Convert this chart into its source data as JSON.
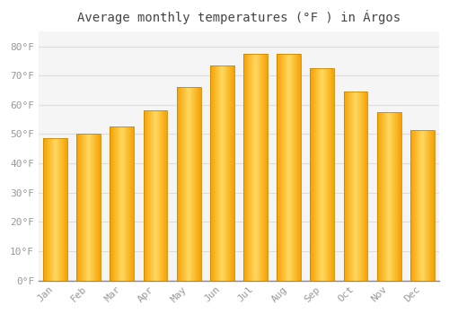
{
  "title": "Average monthly temperatures (°F ) in Árgos",
  "months": [
    "Jan",
    "Feb",
    "Mar",
    "Apr",
    "May",
    "Jun",
    "Jul",
    "Aug",
    "Sep",
    "Oct",
    "Nov",
    "Dec"
  ],
  "values": [
    48.5,
    50.0,
    52.5,
    58.0,
    66.0,
    73.5,
    77.5,
    77.5,
    72.5,
    64.5,
    57.5,
    51.5
  ],
  "bar_color_main": "#FFA500",
  "bar_color_light": "#FFD700",
  "bar_edge_color": "#CC8800",
  "background_color": "#FFFFFF",
  "plot_bg_color": "#F5F5F5",
  "grid_color": "#DDDDDD",
  "yticks": [
    0,
    10,
    20,
    30,
    40,
    50,
    60,
    70,
    80
  ],
  "ylim": [
    0,
    85
  ],
  "tick_label_color": "#999999",
  "title_color": "#444444",
  "title_fontsize": 10,
  "axis_fontsize": 8,
  "bar_width": 0.72
}
